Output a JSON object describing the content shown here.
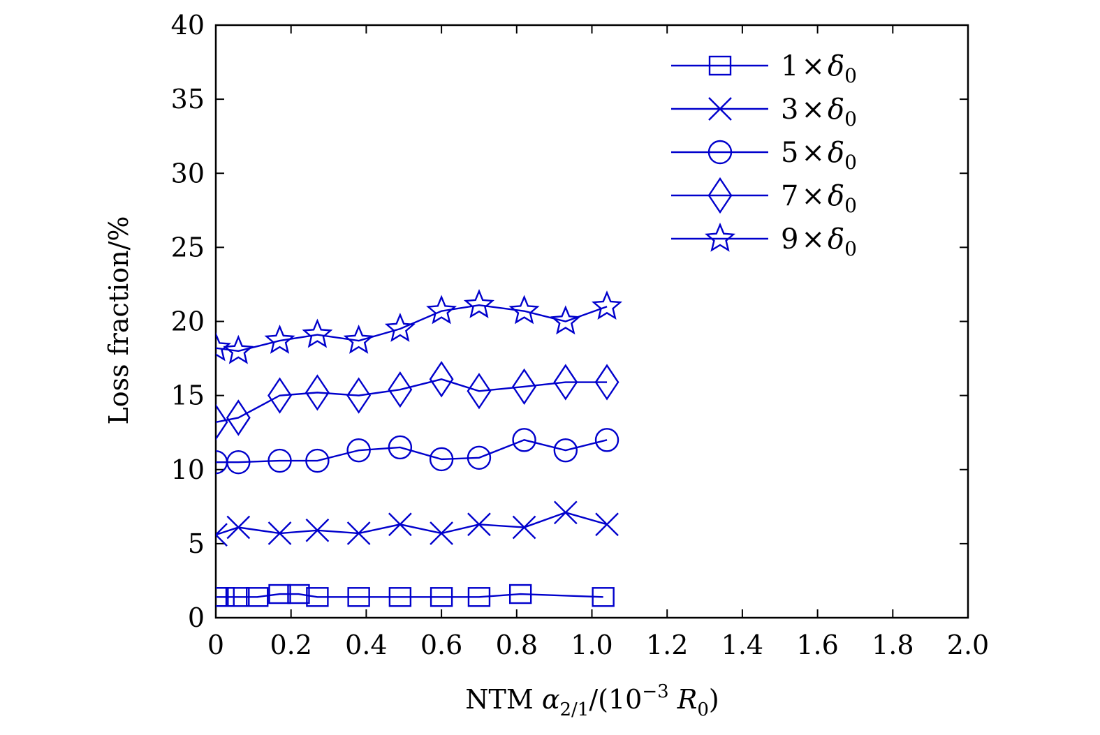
{
  "chart_data": {
    "type": "line",
    "title": "",
    "xlabel": "NTM α2/1/(10−3 R0)",
    "ylabel": "Loss fraction/%",
    "xlim": [
      0,
      2.0
    ],
    "ylim": [
      0,
      40
    ],
    "x_ticks": [
      "0",
      "0.2",
      "0.4",
      "0.6",
      "0.8",
      "1.0",
      "1.2",
      "1.4",
      "1.6",
      "1.8",
      "2.0"
    ],
    "y_ticks": [
      "0",
      "5",
      "10",
      "15",
      "20",
      "25",
      "30",
      "35",
      "40"
    ],
    "grid": false,
    "legend_position": "top-right",
    "color": "#0000cc",
    "series": [
      {
        "name": "1×δ0",
        "marker": "square",
        "x": [
          0.0,
          0.02,
          0.06,
          0.11,
          0.17,
          0.22,
          0.27,
          0.38,
          0.49,
          0.6,
          0.7,
          0.81,
          1.03
        ],
        "y": [
          1.4,
          1.4,
          1.4,
          1.4,
          1.6,
          1.6,
          1.4,
          1.4,
          1.4,
          1.4,
          1.4,
          1.6,
          1.4
        ]
      },
      {
        "name": "3×δ0",
        "marker": "x",
        "x": [
          0.0,
          0.06,
          0.17,
          0.27,
          0.38,
          0.49,
          0.6,
          0.7,
          0.82,
          0.93,
          1.04
        ],
        "y": [
          5.6,
          6.1,
          5.7,
          5.9,
          5.7,
          6.3,
          5.7,
          6.3,
          6.1,
          7.1,
          6.3
        ]
      },
      {
        "name": "5×δ0",
        "marker": "circle",
        "x": [
          0.0,
          0.06,
          0.17,
          0.27,
          0.38,
          0.49,
          0.6,
          0.7,
          0.82,
          0.93,
          1.04
        ],
        "y": [
          10.5,
          10.5,
          10.6,
          10.6,
          11.3,
          11.5,
          10.7,
          10.8,
          12.0,
          11.3,
          12.0
        ]
      },
      {
        "name": "7×δ0",
        "marker": "diamond",
        "x": [
          0.0,
          0.06,
          0.17,
          0.27,
          0.38,
          0.49,
          0.6,
          0.7,
          0.82,
          0.93,
          1.04
        ],
        "y": [
          13.2,
          13.5,
          15.0,
          15.2,
          15.0,
          15.4,
          16.1,
          15.3,
          15.6,
          15.9,
          15.9
        ]
      },
      {
        "name": "9×δ0",
        "marker": "star",
        "x": [
          0.0,
          0.06,
          0.17,
          0.27,
          0.38,
          0.49,
          0.6,
          0.7,
          0.82,
          0.93,
          1.04
        ],
        "y": [
          18.2,
          18.0,
          18.7,
          19.1,
          18.7,
          19.5,
          20.7,
          21.1,
          20.7,
          20.0,
          21.0
        ]
      }
    ]
  }
}
